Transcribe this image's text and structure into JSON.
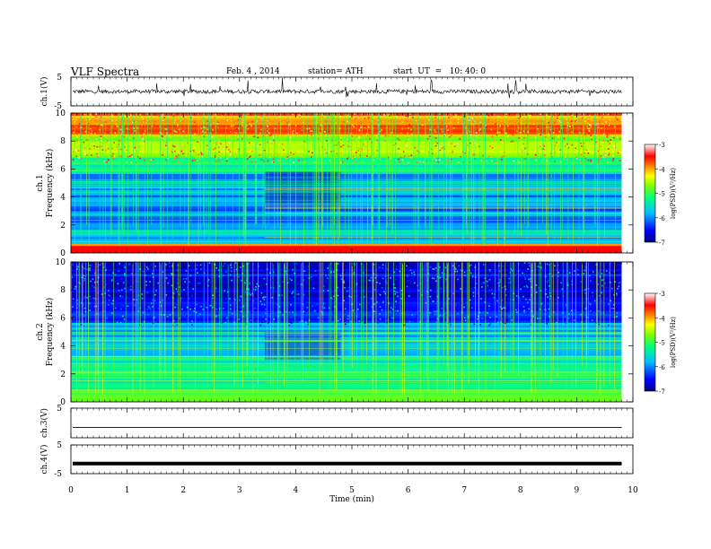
{
  "header": {
    "title": "VLF  Spectra",
    "date": "Feb. 4  , 2014",
    "station": "station= ATH",
    "start": "start  UT  =   10: 40: 0"
  },
  "chart_data": [
    {
      "type": "line",
      "panel": "waveform-ch1",
      "ylabel": "ch.1(V)",
      "ylim": [
        -5,
        5
      ],
      "yticks": [
        "5",
        "-5"
      ],
      "baseline": 0,
      "color": "#000000"
    },
    {
      "type": "heatmap",
      "panel": "spectrogram-ch1",
      "ylabel": "ch.1\nFrequency  (kHz)",
      "ylim": [
        0,
        10
      ],
      "yticks": [
        "10",
        "8",
        "6",
        "4",
        "2",
        "0"
      ],
      "xlim": [
        0,
        10
      ],
      "note_time_break_min": 3.45,
      "colorbar": {
        "label": "log(PSD)(V²/Hz)",
        "ticks": [
          "-3",
          "-4",
          "-5",
          "-6",
          "-7"
        ],
        "range": [
          -7,
          -3
        ],
        "colors": [
          "#000080",
          "#0000ff",
          "#00bfff",
          "#00ff80",
          "#80ff00",
          "#ffff00",
          "#ff8000",
          "#ff0000",
          "#ffffff"
        ]
      }
    },
    {
      "type": "heatmap",
      "panel": "spectrogram-ch2",
      "ylabel": "ch.2\nFrequency  (kHz)",
      "ylim": [
        0,
        10
      ],
      "yticks": [
        "10",
        "8",
        "6",
        "4",
        "2",
        "0"
      ],
      "xlim": [
        0,
        10
      ],
      "colorbar": {
        "label": "log(PSD)(V²/Hz)",
        "ticks": [
          "-3",
          "-4",
          "-5",
          "-6",
          "-7"
        ],
        "range": [
          -7,
          -3
        ]
      }
    },
    {
      "type": "line",
      "panel": "waveform-ch3",
      "ylabel": "ch.3(V)",
      "ylim": [
        -5,
        5
      ],
      "yticks": [
        "5"
      ],
      "baseline": -1.5,
      "color": "#000000"
    },
    {
      "type": "line",
      "panel": "waveform-ch4",
      "ylabel": "ch.4(V)",
      "ylim": [
        -5,
        5
      ],
      "yticks": [
        "5",
        "-5"
      ],
      "baseline": -1.5,
      "color": "#000000"
    }
  ],
  "xaxis": {
    "label": "Time  (min)",
    "range": [
      0,
      10
    ],
    "ticks": [
      "0",
      "1",
      "2",
      "3",
      "4",
      "5",
      "6",
      "7",
      "8",
      "9",
      "10"
    ],
    "data_end": 9.8
  }
}
